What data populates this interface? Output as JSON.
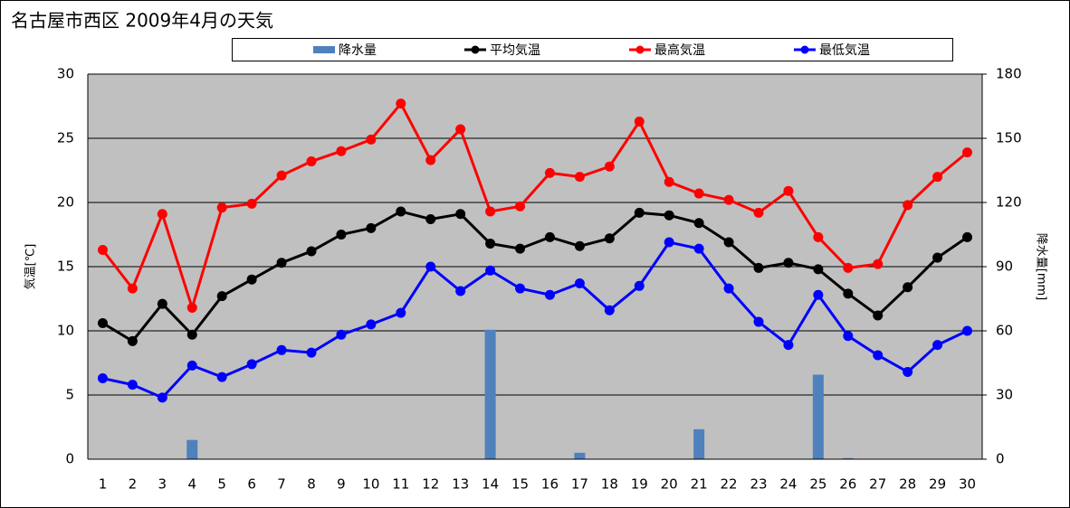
{
  "chart_data": {
    "type": "combo",
    "title": "名古屋市西区 2009年4月の天気",
    "y_label": "気温[℃]",
    "y2_label": "降水量[mm]",
    "categories": [
      "1",
      "2",
      "3",
      "4",
      "5",
      "6",
      "7",
      "8",
      "9",
      "10",
      "11",
      "12",
      "13",
      "14",
      "15",
      "16",
      "17",
      "18",
      "19",
      "20",
      "21",
      "22",
      "23",
      "24",
      "25",
      "26",
      "27",
      "28",
      "29",
      "30"
    ],
    "ylim": [
      0,
      30
    ],
    "yticks": [
      0,
      5,
      10,
      15,
      20,
      25,
      30
    ],
    "y2lim": [
      0,
      180
    ],
    "y2ticks": [
      0,
      30,
      60,
      90,
      120,
      150,
      180
    ],
    "grid": true,
    "legend": "top",
    "series": [
      {
        "name": "降水量",
        "type": "bar",
        "axis": "y2",
        "color": "#4f81bd",
        "values": [
          0,
          0,
          0,
          9,
          0,
          0,
          0,
          0,
          0,
          0,
          0,
          0,
          0,
          60.5,
          0,
          0,
          3,
          0,
          0,
          0,
          14,
          0,
          0,
          0,
          39.5,
          0.5,
          0,
          0,
          0,
          0
        ]
      },
      {
        "name": "平均気温",
        "type": "line",
        "color": "#000000",
        "values": [
          10.6,
          9.2,
          12.1,
          9.7,
          12.7,
          14.0,
          15.3,
          16.2,
          17.5,
          18.0,
          19.3,
          18.7,
          19.1,
          16.8,
          16.4,
          17.3,
          16.6,
          17.2,
          19.2,
          19.0,
          18.4,
          16.9,
          14.9,
          15.3,
          14.8,
          12.9,
          11.2,
          13.4,
          15.7,
          17.3
        ]
      },
      {
        "name": "最高気温",
        "type": "line",
        "color": "#ff0000",
        "values": [
          16.3,
          13.3,
          19.1,
          11.8,
          19.6,
          19.9,
          22.1,
          23.2,
          24.0,
          24.9,
          27.7,
          23.3,
          25.7,
          19.3,
          19.7,
          22.3,
          22.0,
          22.8,
          26.3,
          21.6,
          20.7,
          20.2,
          19.2,
          20.9,
          17.3,
          14.9,
          15.2,
          19.8,
          22.0,
          23.9
        ]
      },
      {
        "name": "最低気温",
        "type": "line",
        "color": "#0000ff",
        "values": [
          6.3,
          5.8,
          4.8,
          7.3,
          6.4,
          7.4,
          8.5,
          8.3,
          9.7,
          10.5,
          11.4,
          15.0,
          13.1,
          14.7,
          13.3,
          12.8,
          13.7,
          11.6,
          13.5,
          16.9,
          16.4,
          13.3,
          10.7,
          8.9,
          12.8,
          9.6,
          8.1,
          6.8,
          8.9,
          10.0
        ]
      }
    ]
  }
}
